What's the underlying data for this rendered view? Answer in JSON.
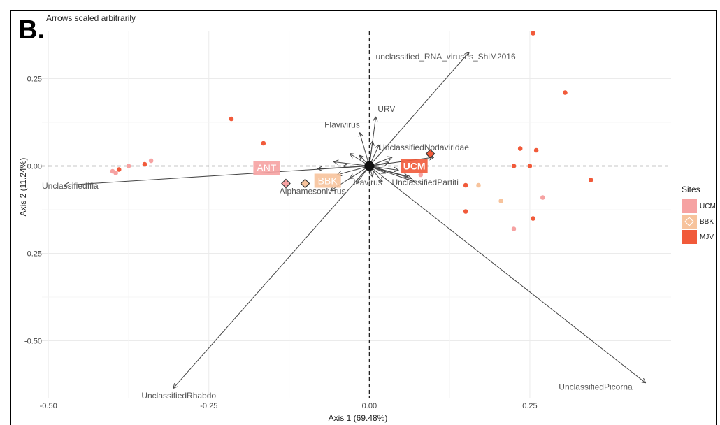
{
  "panel_label": "B.",
  "subtitle": "Arrows scaled arbitrarily",
  "chart_data": {
    "type": "scatter",
    "xlabel": "Axis 1 (69.48%)",
    "ylabel": "Axis 2 (11.24%)",
    "xlim": [
      -0.51,
      0.47
    ],
    "ylim": [
      -0.665,
      0.385
    ],
    "xticks": [
      -0.5,
      -0.25,
      0.0,
      0.25
    ],
    "yticks": [
      0.25,
      0.0,
      -0.25,
      -0.5
    ],
    "xtick_labels": [
      "-0.50",
      "-0.25",
      "0.00",
      "0.25"
    ],
    "ytick_labels": [
      "0.25",
      "0.00",
      "-0.25",
      "-0.50"
    ],
    "grid": true,
    "legend": {
      "title": "Sites",
      "position": "right",
      "entries": [
        {
          "label": "UCM",
          "color": "#f6a2a2"
        },
        {
          "label": "BBK",
          "color": "#f7c39c"
        },
        {
          "label": "MJV",
          "color": "#f15a3a"
        }
      ]
    },
    "points": [
      {
        "site": "UCM",
        "x": -0.395,
        "y": -0.02
      },
      {
        "site": "UCM",
        "x": -0.4,
        "y": -0.015
      },
      {
        "site": "UCM",
        "x": -0.375,
        "y": 0.0
      },
      {
        "site": "UCM",
        "x": -0.34,
        "y": 0.015
      },
      {
        "site": "UCM",
        "x": 0.08,
        "y": -0.025
      },
      {
        "site": "UCM",
        "x": 0.225,
        "y": -0.18
      },
      {
        "site": "UCM",
        "x": 0.27,
        "y": -0.09
      },
      {
        "site": "BBK",
        "x": 0.17,
        "y": -0.055
      },
      {
        "site": "BBK",
        "x": 0.205,
        "y": -0.1
      },
      {
        "site": "MJV",
        "x": -0.39,
        "y": -0.01
      },
      {
        "site": "MJV",
        "x": -0.35,
        "y": 0.005
      },
      {
        "site": "MJV",
        "x": -0.215,
        "y": 0.135
      },
      {
        "site": "MJV",
        "x": -0.165,
        "y": 0.065
      },
      {
        "site": "MJV",
        "x": 0.255,
        "y": 0.38
      },
      {
        "site": "MJV",
        "x": 0.305,
        "y": 0.21
      },
      {
        "site": "MJV",
        "x": 0.235,
        "y": 0.05
      },
      {
        "site": "MJV",
        "x": 0.26,
        "y": 0.045
      },
      {
        "site": "MJV",
        "x": 0.225,
        "y": 0.0
      },
      {
        "site": "MJV",
        "x": 0.25,
        "y": 0.0
      },
      {
        "site": "MJV",
        "x": 0.15,
        "y": -0.055
      },
      {
        "site": "MJV",
        "x": 0.15,
        "y": -0.13
      },
      {
        "site": "MJV",
        "x": 0.255,
        "y": -0.15
      },
      {
        "site": "MJV",
        "x": 0.345,
        "y": -0.04
      }
    ],
    "centroids": [
      {
        "site": "UCM",
        "label": "ANT",
        "x": -0.13,
        "y": -0.05,
        "label_x": -0.16,
        "label_y": -0.005
      },
      {
        "site": "BBK",
        "label": "BBK",
        "x": -0.1,
        "y": -0.05,
        "label_x": -0.065,
        "label_y": -0.042
      },
      {
        "site": "MJV",
        "label": "UCM",
        "x": 0.095,
        "y": 0.035,
        "label_x": 0.07,
        "label_y": 0.0
      }
    ],
    "arrows": [
      {
        "label": "unclassified_RNA_viruses_ShiM2016",
        "x": 0.155,
        "y": 0.325,
        "label_x": 0.01,
        "label_y": 0.305
      },
      {
        "label": "URV",
        "x": 0.01,
        "y": 0.14,
        "label_x": 0.013,
        "label_y": 0.155
      },
      {
        "label": "Flavivirus",
        "x": -0.015,
        "y": 0.095,
        "label_x": -0.07,
        "label_y": 0.11
      },
      {
        "label": "UnclassifiedNodaviridae",
        "x": 0.1,
        "y": 0.025,
        "label_x": 0.015,
        "label_y": 0.045
      },
      {
        "label": "UnclassifiedIfla",
        "x": -0.475,
        "y": -0.055,
        "label_x": -0.51,
        "label_y": -0.065
      },
      {
        "label": "Alphamesonivirus",
        "x": -0.06,
        "y": -0.07,
        "label_x": -0.14,
        "label_y": -0.08
      },
      {
        "label": "Iflavirus",
        "x": 0.02,
        "y": -0.045,
        "label_x": -0.025,
        "label_y": -0.055
      },
      {
        "label": "UnclassifiedPartiti",
        "x": 0.07,
        "y": -0.045,
        "label_x": 0.035,
        "label_y": -0.055
      },
      {
        "label": "UnclassifiedRhabdo",
        "x": -0.305,
        "y": -0.635,
        "label_x": -0.355,
        "label_y": -0.665
      },
      {
        "label": "UnclassifiedPicorna",
        "x": 0.43,
        "y": -0.62,
        "label_x": 0.295,
        "label_y": -0.64
      }
    ],
    "minor_arrows": [
      {
        "x": 0.005,
        "y": 0.07
      },
      {
        "x": -0.03,
        "y": 0.035
      },
      {
        "x": 0.035,
        "y": 0.025
      },
      {
        "x": -0.055,
        "y": 0.012
      },
      {
        "x": -0.08,
        "y": -0.008
      },
      {
        "x": -0.05,
        "y": -0.025
      },
      {
        "x": -0.02,
        "y": -0.05
      },
      {
        "x": 0.025,
        "y": -0.02
      },
      {
        "x": 0.06,
        "y": -0.03
      },
      {
        "x": -0.015,
        "y": 0.03
      },
      {
        "x": 0.015,
        "y": 0.06
      },
      {
        "x": -0.03,
        "y": -0.035
      },
      {
        "x": 0.045,
        "y": -0.012
      },
      {
        "x": 0.03,
        "y": 0.01
      },
      {
        "x": -0.04,
        "y": 0.0
      },
      {
        "x": 0.005,
        "y": -0.03
      },
      {
        "x": 0.065,
        "y": -0.035
      }
    ]
  }
}
